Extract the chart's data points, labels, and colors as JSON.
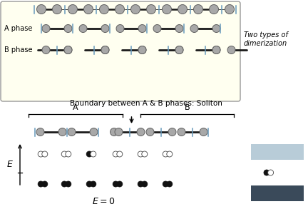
{
  "bg_color": "#fffff0",
  "atom_color": "#a8a8a8",
  "atom_edge": "#606060",
  "bond_color": "#1a1a1a",
  "divider_color": "#6699bb",
  "title_text": "Boundary between A & B phases: Soliton",
  "two_types_text": "Two types of\ndimerization",
  "E_zero_text": "$E = 0$",
  "A_phase_label": "A phase",
  "B_phase_label": "B phase",
  "E_label": "$E$",
  "A_label": "A",
  "B_label": "B",
  "ar": 0.055,
  "ar_chain": 0.065
}
